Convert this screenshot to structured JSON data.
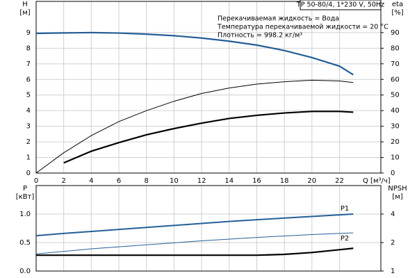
{
  "chart_data": [
    {
      "type": "line",
      "title": "TP 50-80/4, 1*230 V, 50Hz",
      "annotations": [
        "Перекачиваемая жидкость = Вода",
        "Температура перекачиваемой жидкости = 20 °C",
        "Плотность = 998.2 кг/м³"
      ],
      "ylabel": "H",
      "yunit": "[м]",
      "y2label": "eta",
      "y2unit": "[%]",
      "xlabel": "Q [м³/ч]",
      "xlim": [
        0,
        25
      ],
      "xticks": [
        0,
        2,
        4,
        6,
        8,
        10,
        12,
        14,
        16,
        18,
        20,
        22
      ],
      "ylim": [
        0,
        11
      ],
      "yticks": [
        0,
        1,
        2,
        3,
        4,
        5,
        6,
        7,
        8,
        9
      ],
      "y2lim": [
        0,
        110
      ],
      "y2ticks": [
        0,
        10,
        20,
        30,
        40,
        50,
        60,
        70,
        80,
        90
      ],
      "grid": true,
      "series": [
        {
          "color": "#245e98",
          "width": 2.2,
          "axis": "y",
          "x": [
            0,
            2,
            4,
            6,
            8,
            10,
            12,
            14,
            16,
            18,
            20,
            22,
            23
          ],
          "values": [
            8.95,
            8.98,
            9.0,
            8.97,
            8.9,
            8.8,
            8.65,
            8.45,
            8.2,
            7.85,
            7.4,
            6.85,
            6.3
          ]
        },
        {
          "color": "#000000",
          "width": 1,
          "axis": "y2",
          "x": [
            0,
            2,
            4,
            6,
            8,
            10,
            12,
            14,
            16,
            18,
            20,
            22,
            23
          ],
          "values": [
            0,
            13,
            24,
            33,
            40,
            46,
            51,
            54.5,
            57,
            58.5,
            59.5,
            59,
            58
          ]
        },
        {
          "color": "#000000",
          "width": 2.2,
          "axis": "y2",
          "x": [
            2,
            4,
            6,
            8,
            10,
            12,
            14,
            16,
            18,
            20,
            22,
            23
          ],
          "values": [
            6.5,
            14,
            19.5,
            24.5,
            28.5,
            32,
            35,
            37,
            38.5,
            39.5,
            39.5,
            39
          ]
        }
      ]
    },
    {
      "type": "line",
      "ylabel": "P",
      "yunit": "[кВт]",
      "y2label": "NPSH",
      "y2unit": "[м]",
      "xlim": [
        0,
        25
      ],
      "xticks": [
        0,
        2,
        4,
        6,
        8,
        10,
        12,
        14,
        16,
        18,
        20,
        22
      ],
      "ylim": [
        0,
        1.5
      ],
      "yticks": [
        {
          "value": 0,
          "label": "0.0"
        },
        {
          "value": 0.5,
          "label": "0.5"
        },
        {
          "value": 1,
          "label": "1.0"
        }
      ],
      "y2lim": [
        1,
        8
      ],
      "y2ticks": [
        1,
        2,
        4
      ],
      "y2log": true,
      "grid": true,
      "series": [
        {
          "name": "P1",
          "color": "#245e98",
          "width": 2,
          "axis": "y",
          "x": [
            0,
            2,
            6,
            10,
            14,
            18,
            23
          ],
          "values": [
            0.62,
            0.66,
            0.73,
            0.8,
            0.87,
            0.93,
            1.0
          ]
        },
        {
          "name": "P2",
          "color": "#245e98",
          "width": 1,
          "axis": "y",
          "x": [
            0,
            4,
            8,
            12,
            16,
            20,
            23
          ],
          "values": [
            0.3,
            0.39,
            0.46,
            0.53,
            0.59,
            0.64,
            0.67
          ]
        },
        {
          "color": "#000000",
          "width": 2.2,
          "axis": "y2",
          "x": [
            0,
            4,
            8,
            12,
            16,
            18,
            20,
            22,
            23
          ],
          "values": [
            1.47,
            1.47,
            1.47,
            1.47,
            1.47,
            1.5,
            1.57,
            1.68,
            1.74
          ]
        }
      ]
    }
  ]
}
